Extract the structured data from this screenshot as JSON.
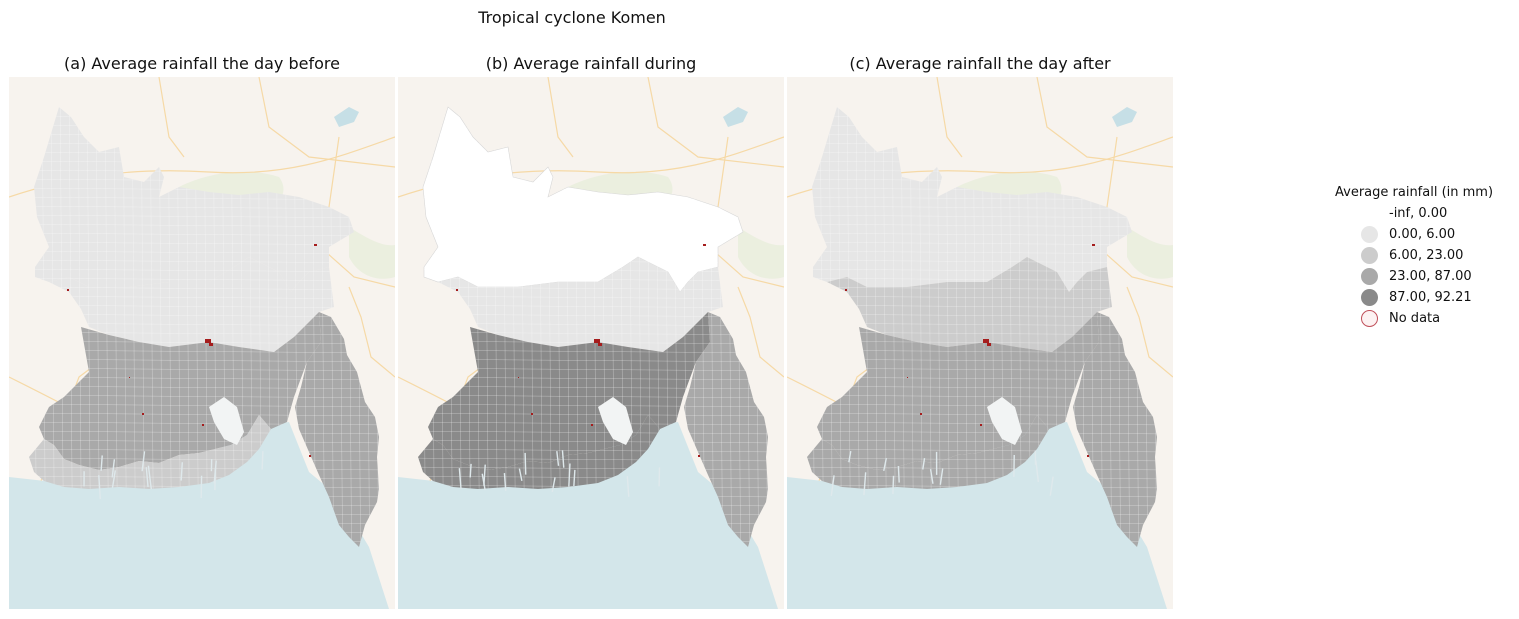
{
  "figure": {
    "title": "Tropical cyclone Komen"
  },
  "panels": [
    {
      "id": "a",
      "title": "(a) Average rainfall the day before",
      "zones": {
        "north": 1,
        "middle": 1,
        "south": 3,
        "southeast": 3,
        "coast": 2
      }
    },
    {
      "id": "b",
      "title": "(b) Average rainfall during",
      "zones": {
        "north": 0,
        "middle": 1,
        "south": 4,
        "southeast": 3,
        "coast": 4
      }
    },
    {
      "id": "c",
      "title": "(c) Average rainfall the day after",
      "zones": {
        "north": 1,
        "middle": 2,
        "south": 3,
        "southeast": 3,
        "coast": 3
      }
    }
  ],
  "legend": {
    "title": "Average rainfall (in mm)",
    "items": [
      {
        "label": "-inf,  0.00",
        "color": "#ffffff",
        "border": "none"
      },
      {
        "label": " 0.00,  6.00",
        "color": "#e6e6e6",
        "border": "none"
      },
      {
        "label": " 6.00, 23.00",
        "color": "#cccccc",
        "border": "none"
      },
      {
        "label": "23.00, 87.00",
        "color": "#a9a9a9",
        "border": "none"
      },
      {
        "label": "87.00, 92.21",
        "color": "#8a8a8a",
        "border": "none"
      },
      {
        "label": "No data",
        "color": "#fdf2f2",
        "border": "#c0505a"
      }
    ]
  },
  "colors": {
    "sea": "#d3e6ea",
    "land_base": "#f7f3ee",
    "road": "#f6d9a6",
    "no_data": "#a51d1d"
  }
}
